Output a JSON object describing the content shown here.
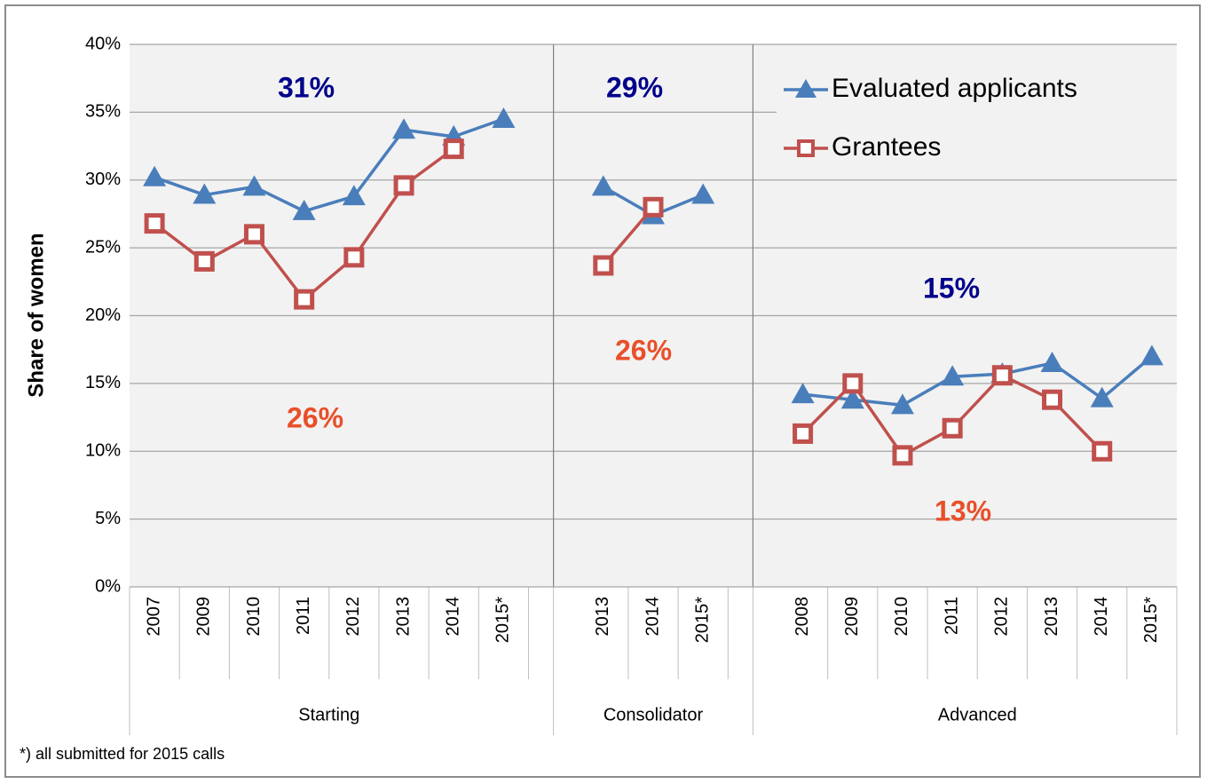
{
  "chart_data": {
    "type": "line",
    "y_label": "Share of women",
    "categories": [
      "2007",
      "2009",
      "2010",
      "2011",
      "2012",
      "2013",
      "2014",
      "2015*",
      null,
      "2013",
      "2014",
      "2015*",
      null,
      "2008",
      "2009",
      "2010",
      "2011",
      "2012",
      "2013",
      "2014",
      "2015*"
    ],
    "groups": [
      "Starting",
      "Consolidator",
      "Advanced"
    ],
    "series": [
      {
        "name": "Evaluated applicants",
        "color": "#4a7ebb",
        "marker": "triangle",
        "values": [
          30.2,
          28.9,
          29.5,
          27.7,
          28.8,
          33.7,
          33.2,
          34.5,
          null,
          29.5,
          27.4,
          28.9,
          null,
          14.2,
          13.8,
          13.4,
          15.5,
          15.7,
          16.5,
          13.9,
          17.0
        ]
      },
      {
        "name": "Grantees",
        "color": "#c0504d",
        "marker": "square",
        "values": [
          26.8,
          24.0,
          26.0,
          21.2,
          24.3,
          29.6,
          32.3,
          null,
          null,
          23.7,
          28.0,
          null,
          null,
          11.3,
          15.0,
          9.7,
          11.7,
          15.6,
          13.8,
          10.0,
          null
        ]
      }
    ],
    "annotations": [
      {
        "text": "31%",
        "color": "#00008b"
      },
      {
        "text": "29%",
        "color": "#00008b"
      },
      {
        "text": "15%",
        "color": "#00008b"
      },
      {
        "text": "26%",
        "color": "#e8502a"
      },
      {
        "text": "26%",
        "color": "#e8502a"
      },
      {
        "text": "13%",
        "color": "#e8502a"
      }
    ],
    "ylim": [
      0,
      40
    ],
    "yticks": [
      {
        "value": 0,
        "label": "0%"
      },
      {
        "value": 5,
        "label": "5%"
      },
      {
        "value": 10,
        "label": "10%"
      },
      {
        "value": 15,
        "label": "15%"
      },
      {
        "value": 20,
        "label": "20%"
      },
      {
        "value": 25,
        "label": "25%"
      },
      {
        "value": 30,
        "label": "30%"
      },
      {
        "value": 35,
        "label": "35%"
      },
      {
        "value": 40,
        "label": "40%"
      }
    ],
    "grid": true,
    "legend": "top-right",
    "footnote": "*) all submitted for 2015 calls"
  }
}
